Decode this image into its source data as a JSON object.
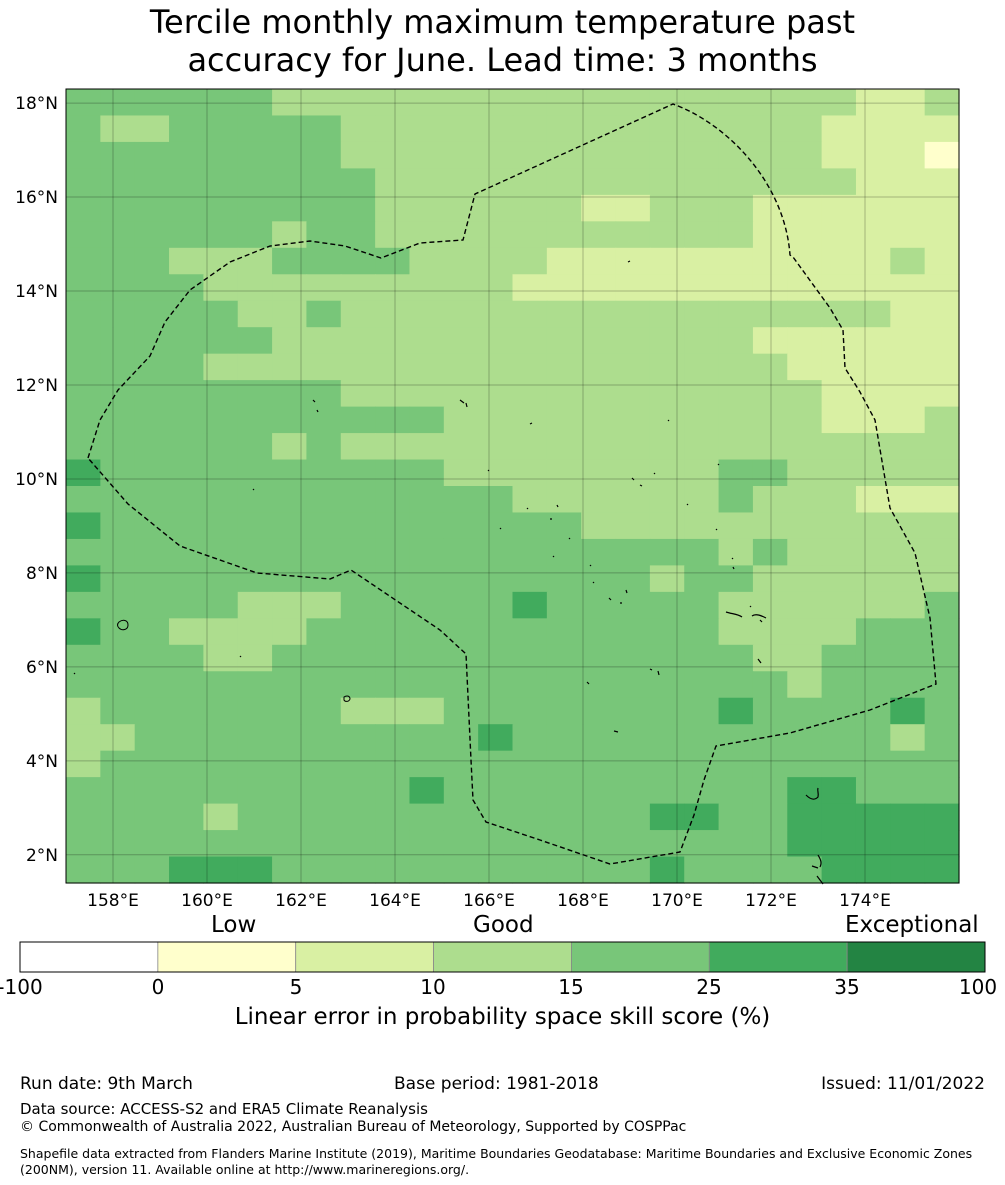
{
  "title": {
    "line1": "Tercile monthly maximum temperature past",
    "line2": "accuracy for June. Lead time: 3 months"
  },
  "map": {
    "lon_labels": [
      "158°E",
      "160°E",
      "162°E",
      "164°E",
      "166°E",
      "168°E",
      "170°E",
      "172°E",
      "174°E"
    ],
    "lat_labels": [
      "18°N",
      "16°N",
      "14°N",
      "12°N",
      "10°N",
      "8°N",
      "6°N",
      "4°N",
      "2°N"
    ],
    "lon_range": [
      157.0,
      176.0
    ],
    "lat_range": [
      1.4,
      18.3
    ],
    "grid_cell_deg": 0.83,
    "grid_rows_n_to_s": [
      "44444433333333333333333223",
      "43344444333333333333332222",
      "44444444333333333333332221",
      "44444444433333333333333222",
      "44444444433333322333222222",
      "44444434433333333333222222",
      "44433344443333222222222232",
      "44443333333332222222222222",
      "44444334333333333333333322",
      "44444433333333333333222222",
      "44443333333333333333322222",
      "44444444333333333333332222",
      "44444444444333333333332223",
      "44444434333333333333333333",
      "54444444444333333334433333",
      "44444444444443333334333222",
      "54444444444444433333333333",
      "44444444444444444443433333",
      "54444444444444444344333333",
      "44444333444445444443333334",
      "54433334444444444443333444",
      "44443344444444444444334444",
      "44444444444444444444434444",
      "34444444333444444445444454",
      "33444444444454444444444434",
      "34444444444444444444444444",
      "44444444445444444444455444",
      "44443444444444444554455555",
      "44444444444444444444455555",
      "44455544444444444544445555"
    ]
  },
  "colorbar": {
    "categories": [
      "Low",
      "Good",
      "Exceptional"
    ],
    "ticks": [
      "-100",
      "0",
      "5",
      "10",
      "15",
      "25",
      "35",
      "100"
    ],
    "colors": [
      "#ffffff",
      "#ffffcc",
      "#d9f0a3",
      "#addd8e",
      "#78c679",
      "#41ab5d",
      "#238443"
    ],
    "label": "Linear error in probability space skill score (%)"
  },
  "footer": {
    "run_date": "Run date: 9th March",
    "base_period": "Base period: 1981-2018",
    "issued": "Issued: 11/01/2022",
    "data_source": "Data source: ACCESS-S2 and ERA5 Climate Reanalysis",
    "copyright": "© Commonwealth of Australia 2022, Australian Bureau of Meteorology, Supported by COSPPac",
    "shapefile": "Shapefile data extracted from Flanders Marine Institute (2019), Maritime Boundaries Geodatabase: Maritime Boundaries and Exclusive Economic Zones (200NM), version 11. Available online at http://www.marineregions.org/."
  }
}
